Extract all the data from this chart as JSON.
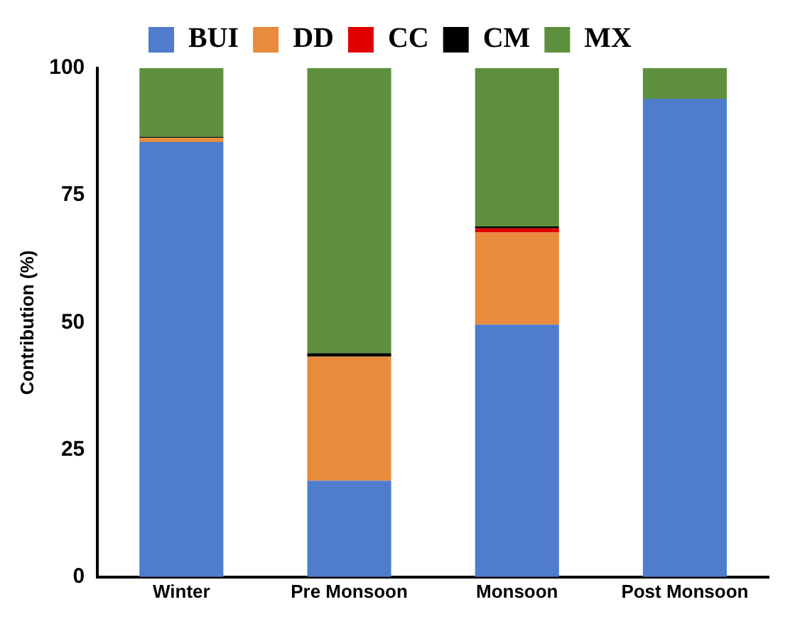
{
  "chart_data": {
    "type": "bar",
    "stacked": true,
    "ylabel": "Contribution (%)",
    "categories": [
      "Winter",
      "Pre Monsoon",
      "Monsoon",
      "Post Monsoon"
    ],
    "series": [
      {
        "name": "BUI",
        "color": "#4f7ccb",
        "values": [
          85.5,
          18.9,
          49.6,
          94
        ]
      },
      {
        "name": "DD",
        "color": "#e98b3c",
        "values": [
          0.8,
          24.4,
          18.1,
          0
        ]
      },
      {
        "name": "CC",
        "color": "#e00000",
        "values": [
          0,
          0,
          0.8,
          0
        ]
      },
      {
        "name": "CM",
        "color": "#000000",
        "values": [
          0.2,
          0.7,
          0.4,
          0
        ]
      },
      {
        "name": "MX",
        "color": "#5d8f3d",
        "values": [
          13.5,
          56,
          31.1,
          6
        ]
      }
    ],
    "ylim": [
      0,
      100
    ],
    "yticks": [
      0,
      25,
      50,
      75,
      100
    ],
    "grid": false,
    "legend": "top"
  }
}
